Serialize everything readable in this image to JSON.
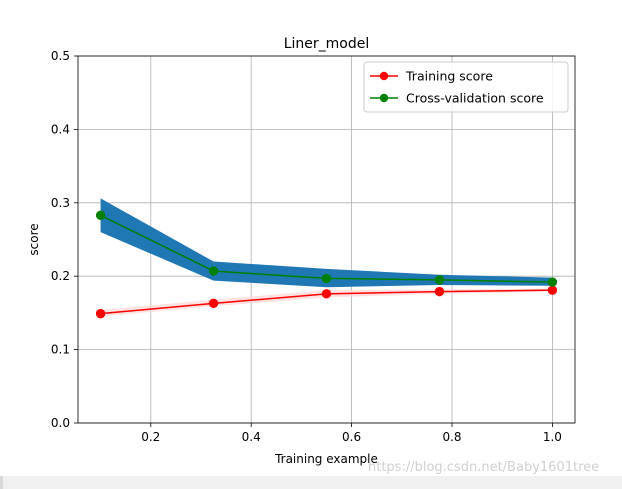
{
  "chart_data": {
    "type": "line",
    "title": "Liner_model",
    "xlabel": "Training example",
    "ylabel": "score",
    "xlim": [
      0.055,
      1.045
    ],
    "ylim": [
      0.0,
      0.5
    ],
    "xticks": [
      0.2,
      0.4,
      0.6,
      0.8,
      1.0
    ],
    "xtick_labels": [
      "0.2",
      "0.4",
      "0.6",
      "0.8",
      "1.0"
    ],
    "yticks": [
      0.0,
      0.1,
      0.2,
      0.3,
      0.4,
      0.5
    ],
    "ytick_labels": [
      "0.0",
      "0.1",
      "0.2",
      "0.3",
      "0.4",
      "0.5"
    ],
    "grid": true,
    "legend_position": "top-right",
    "x": [
      0.1,
      0.325,
      0.55,
      0.775,
      1.0
    ],
    "series": [
      {
        "name": "Training score",
        "color": "#ff0000",
        "band_color": "#ffd6d6",
        "values": [
          0.149,
          0.163,
          0.176,
          0.179,
          0.181
        ],
        "band_lower": [
          0.145,
          0.159,
          0.171,
          0.176,
          0.179
        ],
        "band_upper": [
          0.154,
          0.168,
          0.181,
          0.182,
          0.183
        ]
      },
      {
        "name": "Cross-validation score",
        "color": "#008000",
        "band_color": "#1f77b4",
        "values": [
          0.283,
          0.207,
          0.197,
          0.195,
          0.192
        ],
        "band_lower": [
          0.26,
          0.194,
          0.185,
          0.188,
          0.187
        ],
        "band_upper": [
          0.306,
          0.22,
          0.21,
          0.202,
          0.198
        ]
      }
    ]
  },
  "watermark": "https://blog.csdn.net/Baby1601tree"
}
